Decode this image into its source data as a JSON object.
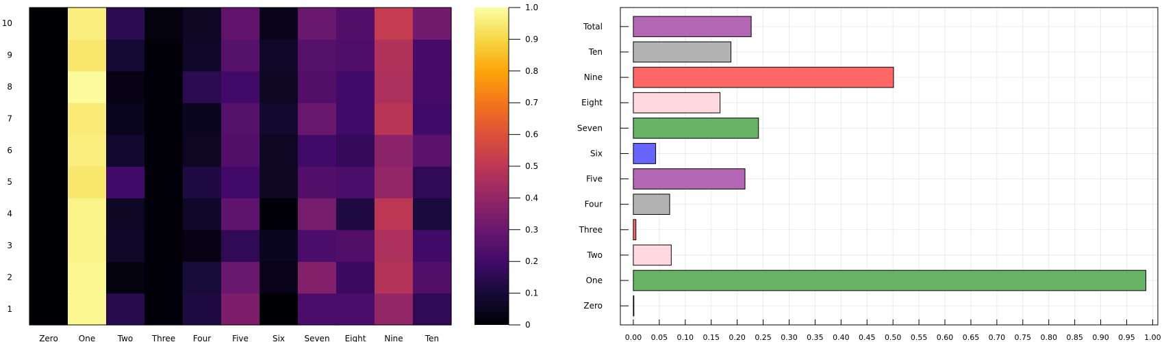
{
  "chart_data": [
    {
      "type": "heatmap",
      "x_categories": [
        "Zero",
        "One",
        "Two",
        "Three",
        "Four",
        "Five",
        "Six",
        "Seven",
        "Eight",
        "Nine",
        "Ten"
      ],
      "y_categories": [
        "1",
        "2",
        "3",
        "4",
        "5",
        "6",
        "7",
        "8",
        "9",
        "10"
      ],
      "values": [
        [
          0.0,
          0.98,
          0.14,
          0.01,
          0.12,
          0.35,
          0.0,
          0.22,
          0.22,
          0.4,
          0.16
        ],
        [
          0.0,
          0.98,
          0.02,
          0.01,
          0.1,
          0.3,
          0.04,
          0.36,
          0.18,
          0.48,
          0.24
        ],
        [
          0.0,
          0.97,
          0.07,
          0.01,
          0.03,
          0.16,
          0.05,
          0.22,
          0.24,
          0.46,
          0.2
        ],
        [
          0.0,
          0.97,
          0.06,
          0.01,
          0.07,
          0.27,
          0.01,
          0.33,
          0.12,
          0.5,
          0.11
        ],
        [
          0.0,
          0.94,
          0.2,
          0.01,
          0.12,
          0.2,
          0.06,
          0.24,
          0.22,
          0.4,
          0.16
        ],
        [
          0.0,
          0.96,
          0.08,
          0.01,
          0.06,
          0.24,
          0.06,
          0.2,
          0.17,
          0.38,
          0.26
        ],
        [
          0.0,
          0.95,
          0.05,
          0.01,
          0.05,
          0.25,
          0.08,
          0.3,
          0.2,
          0.49,
          0.2
        ],
        [
          0.0,
          0.99,
          0.03,
          0.01,
          0.15,
          0.2,
          0.06,
          0.24,
          0.2,
          0.46,
          0.21
        ],
        [
          0.0,
          0.94,
          0.09,
          0.01,
          0.07,
          0.25,
          0.07,
          0.25,
          0.23,
          0.47,
          0.21
        ],
        [
          0.0,
          0.96,
          0.15,
          0.02,
          0.06,
          0.28,
          0.04,
          0.3,
          0.24,
          0.52,
          0.32
        ]
      ],
      "colorbar": {
        "min": 0,
        "max": 1,
        "ticks": [
          "0",
          "0.1",
          "0.2",
          "0.3",
          "0.4",
          "0.5",
          "0.6",
          "0.7",
          "0.8",
          "0.9",
          "1.0"
        ]
      },
      "colormap": "inferno"
    },
    {
      "type": "bar",
      "orientation": "horizontal",
      "categories": [
        "Zero",
        "One",
        "Two",
        "Three",
        "Four",
        "Five",
        "Six",
        "Seven",
        "Eight",
        "Nine",
        "Ten",
        "Total"
      ],
      "values": [
        0.001,
        0.987,
        0.073,
        0.005,
        0.07,
        0.215,
        0.043,
        0.241,
        0.167,
        0.501,
        0.188,
        0.227
      ],
      "colors": [
        "#999999",
        "#66b366",
        "#ffd9df",
        "#ff6666",
        "#b3b3b3",
        "#b366b3",
        "#6666ff",
        "#66b366",
        "#ffd9df",
        "#ff6666",
        "#b3b3b3",
        "#b366b3"
      ],
      "xlim": [
        -0.025,
        1.01
      ],
      "xticks": [
        "0.00",
        "0.05",
        "0.10",
        "0.15",
        "0.20",
        "0.25",
        "0.30",
        "0.35",
        "0.40",
        "0.45",
        "0.50",
        "0.55",
        "0.60",
        "0.65",
        "0.70",
        "0.75",
        "0.80",
        "0.85",
        "0.90",
        "0.95",
        "1.00"
      ],
      "grid": true
    }
  ]
}
